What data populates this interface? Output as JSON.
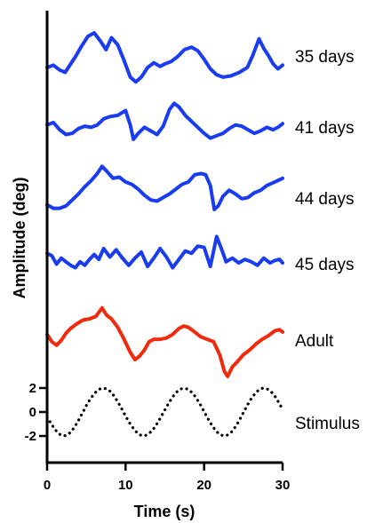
{
  "chart_data": {
    "type": "line",
    "xlabel": "Time (s)",
    "ylabel": "Amplitude (deg)",
    "xlim": [
      0,
      30
    ],
    "x_ticks": [
      "0",
      "10",
      "20",
      "30"
    ],
    "y_ticks": [
      "2",
      "0",
      "-2"
    ],
    "y_ticks_apply_to": "Stimulus",
    "stimulus_amplitude": 2,
    "stimulus_period_s": 10,
    "colors": {
      "juvenile": "#1a3cf0",
      "adult": "#f02a0c",
      "stimulus": "#000000"
    },
    "series": [
      {
        "name": "35 days",
        "color": "#1a3cf0",
        "x": [
          0,
          0.8,
          1.6,
          2.3,
          3.0,
          3.6,
          4.4,
          5.2,
          6.0,
          6.8,
          7.5,
          8.2,
          9.0,
          9.8,
          10.6,
          11.3,
          12.0,
          12.8,
          13.6,
          14.4,
          15.0,
          15.8,
          16.6,
          17.5,
          18.4,
          19.2,
          20.0,
          20.8,
          21.6,
          22.4,
          23.4,
          24.5,
          25.5,
          26.2,
          27.0,
          27.6,
          28.2,
          28.8,
          29.4,
          30.0
        ],
        "values": [
          -0.6,
          -0.4,
          -0.8,
          -1.0,
          -0.3,
          0.3,
          1.2,
          2.0,
          2.3,
          1.6,
          0.9,
          1.9,
          1.3,
          0.0,
          -1.4,
          -1.8,
          -1.4,
          -0.6,
          -0.2,
          -0.5,
          -0.3,
          -0.1,
          0.3,
          0.9,
          1.1,
          0.8,
          0.1,
          -0.7,
          -1.2,
          -1.4,
          -1.3,
          -1.0,
          -0.6,
          0.4,
          1.8,
          1.0,
          0.4,
          -0.3,
          -0.7,
          -0.4
        ]
      },
      {
        "name": "41 days",
        "color": "#1a3cf0",
        "x": [
          0,
          0.8,
          1.6,
          2.4,
          3.2,
          4.0,
          4.8,
          5.6,
          6.4,
          7.2,
          8.0,
          9.0,
          10.0,
          10.6,
          11.0,
          11.6,
          12.4,
          13.2,
          14.0,
          14.8,
          15.6,
          16.2,
          16.8,
          17.6,
          18.4,
          19.2,
          20.0,
          20.8,
          21.6,
          22.4,
          23.2,
          24.0,
          24.8,
          25.6,
          26.4,
          27.2,
          28.0,
          28.8,
          29.4,
          30.0
        ],
        "values": [
          -0.2,
          0.0,
          -0.6,
          -1.0,
          -0.9,
          -0.5,
          -0.3,
          -0.4,
          -0.2,
          0.3,
          0.5,
          0.6,
          1.0,
          -0.2,
          -1.4,
          -0.9,
          -0.4,
          -0.7,
          -1.0,
          -0.3,
          1.1,
          1.6,
          1.3,
          0.6,
          0.1,
          -0.4,
          -0.9,
          -1.3,
          -1.1,
          -0.9,
          -0.5,
          -0.2,
          -0.3,
          -0.6,
          -0.9,
          -0.7,
          -0.4,
          -0.6,
          -0.4,
          -0.1
        ]
      },
      {
        "name": "44 days",
        "color": "#1a3cf0",
        "x": [
          0,
          0.8,
          1.6,
          2.4,
          3.2,
          4.0,
          4.8,
          5.6,
          6.4,
          7.0,
          7.6,
          8.4,
          9.2,
          10.0,
          10.8,
          11.6,
          12.4,
          13.2,
          14.0,
          14.8,
          15.6,
          16.4,
          17.2,
          18.0,
          18.8,
          19.6,
          20.2,
          20.8,
          21.3,
          21.8,
          22.4,
          23.2,
          24.0,
          24.8,
          25.6,
          26.4,
          27.2,
          28.0,
          29.0,
          30.0
        ],
        "values": [
          -1.3,
          -1.6,
          -1.6,
          -1.4,
          -0.9,
          -0.4,
          0.2,
          0.7,
          1.3,
          1.9,
          1.5,
          0.9,
          1.0,
          0.6,
          0.4,
          0.0,
          -0.5,
          -0.9,
          -1.0,
          -0.7,
          -0.4,
          0.0,
          0.4,
          0.6,
          1.2,
          1.3,
          1.2,
          0.3,
          -1.7,
          -1.4,
          -0.6,
          -0.1,
          -0.4,
          -0.8,
          -0.7,
          -0.3,
          -0.1,
          0.3,
          0.6,
          0.9
        ]
      },
      {
        "name": "45 days",
        "color": "#1a3cf0",
        "x": [
          0,
          0.6,
          1.2,
          1.8,
          2.4,
          3.0,
          3.6,
          4.2,
          4.8,
          5.4,
          6.0,
          6.6,
          7.2,
          8.0,
          8.8,
          9.6,
          10.4,
          11.2,
          12.0,
          12.8,
          13.6,
          14.4,
          15.2,
          16.0,
          16.8,
          17.6,
          18.4,
          19.2,
          20.0,
          20.8,
          21.6,
          22.2,
          22.8,
          23.6,
          24.4,
          25.2,
          26.0,
          26.8,
          27.6,
          28.4,
          29.0,
          29.6,
          30.0
        ],
        "values": [
          0.2,
          0.0,
          -0.7,
          -0.2,
          -0.5,
          -0.8,
          -1.0,
          -0.5,
          -0.8,
          -0.3,
          0.1,
          -0.3,
          0.6,
          -0.1,
          0.5,
          -0.2,
          -0.8,
          -0.2,
          0.3,
          -0.9,
          -0.2,
          0.6,
          -0.1,
          -1.0,
          -0.3,
          0.4,
          0.2,
          0.8,
          0.7,
          -0.9,
          1.6,
          0.6,
          -0.5,
          -0.2,
          -0.6,
          -0.3,
          -0.5,
          -0.8,
          -0.2,
          -0.6,
          -0.4,
          -0.3,
          -0.6
        ]
      },
      {
        "name": "Adult",
        "color": "#f02a0c",
        "x": [
          0,
          0.6,
          1.2,
          1.8,
          2.4,
          3.0,
          3.8,
          4.6,
          5.4,
          6.2,
          7.0,
          7.6,
          8.2,
          9.0,
          9.8,
          10.6,
          11.2,
          11.8,
          12.4,
          13.0,
          13.6,
          14.4,
          15.2,
          16.0,
          16.8,
          17.4,
          18.0,
          18.8,
          19.6,
          20.4,
          21.2,
          22.0,
          22.6,
          23.0,
          23.6,
          24.2,
          25.0,
          25.8,
          26.6,
          27.4,
          28.2,
          29.0,
          29.6,
          30.0
        ],
        "values": [
          0.1,
          -0.5,
          -0.8,
          -0.4,
          0.2,
          0.6,
          1.0,
          1.3,
          1.4,
          1.6,
          2.3,
          1.7,
          1.4,
          0.7,
          -0.3,
          -1.4,
          -2.0,
          -1.7,
          -1.2,
          -0.5,
          -0.3,
          -0.3,
          -0.2,
          0.1,
          0.6,
          0.8,
          0.7,
          0.3,
          -0.1,
          -0.3,
          -0.5,
          -1.6,
          -3.0,
          -3.4,
          -2.6,
          -2.2,
          -1.6,
          -1.2,
          -0.7,
          -0.3,
          0.0,
          0.4,
          0.5,
          0.3
        ]
      },
      {
        "name": "Stimulus",
        "color": "#000000",
        "dotted": true,
        "x": [
          0,
          0.5,
          1,
          1.5,
          2,
          2.5,
          3,
          3.5,
          4,
          4.5,
          5,
          5.5,
          6,
          6.5,
          7,
          7.5,
          8,
          8.5,
          9,
          9.5,
          10,
          10.5,
          11,
          11.5,
          12,
          12.5,
          13,
          13.5,
          14,
          14.5,
          15,
          15.5,
          16,
          16.5,
          17,
          17.5,
          18,
          18.5,
          19,
          19.5,
          20,
          20.5,
          21,
          21.5,
          22,
          22.5,
          23,
          23.5,
          24,
          24.5,
          25,
          25.5,
          26,
          26.5,
          27,
          27.5,
          28,
          28.5,
          29,
          29.5,
          30
        ],
        "values": [
          -0.42,
          -0.95,
          -1.45,
          -1.82,
          -1.99,
          -1.95,
          -1.69,
          -1.26,
          -0.7,
          -0.08,
          0.54,
          1.09,
          1.52,
          1.86,
          1.99,
          1.95,
          1.74,
          1.36,
          0.86,
          0.28,
          -0.34,
          -0.91,
          -1.38,
          -1.76,
          -1.96,
          -1.97,
          -1.79,
          -1.45,
          -0.98,
          -0.42,
          0.18,
          0.75,
          1.26,
          1.67,
          1.92,
          1.99,
          1.88,
          1.61,
          1.18,
          0.64,
          0.04,
          -0.57,
          -1.12,
          -1.56,
          -1.88,
          -1.99,
          -1.92,
          -1.66,
          -1.23,
          -0.68,
          -0.06,
          0.56,
          1.11,
          1.54,
          1.87,
          1.99,
          1.94,
          1.72,
          1.33,
          0.81,
          0.22
        ]
      }
    ]
  }
}
